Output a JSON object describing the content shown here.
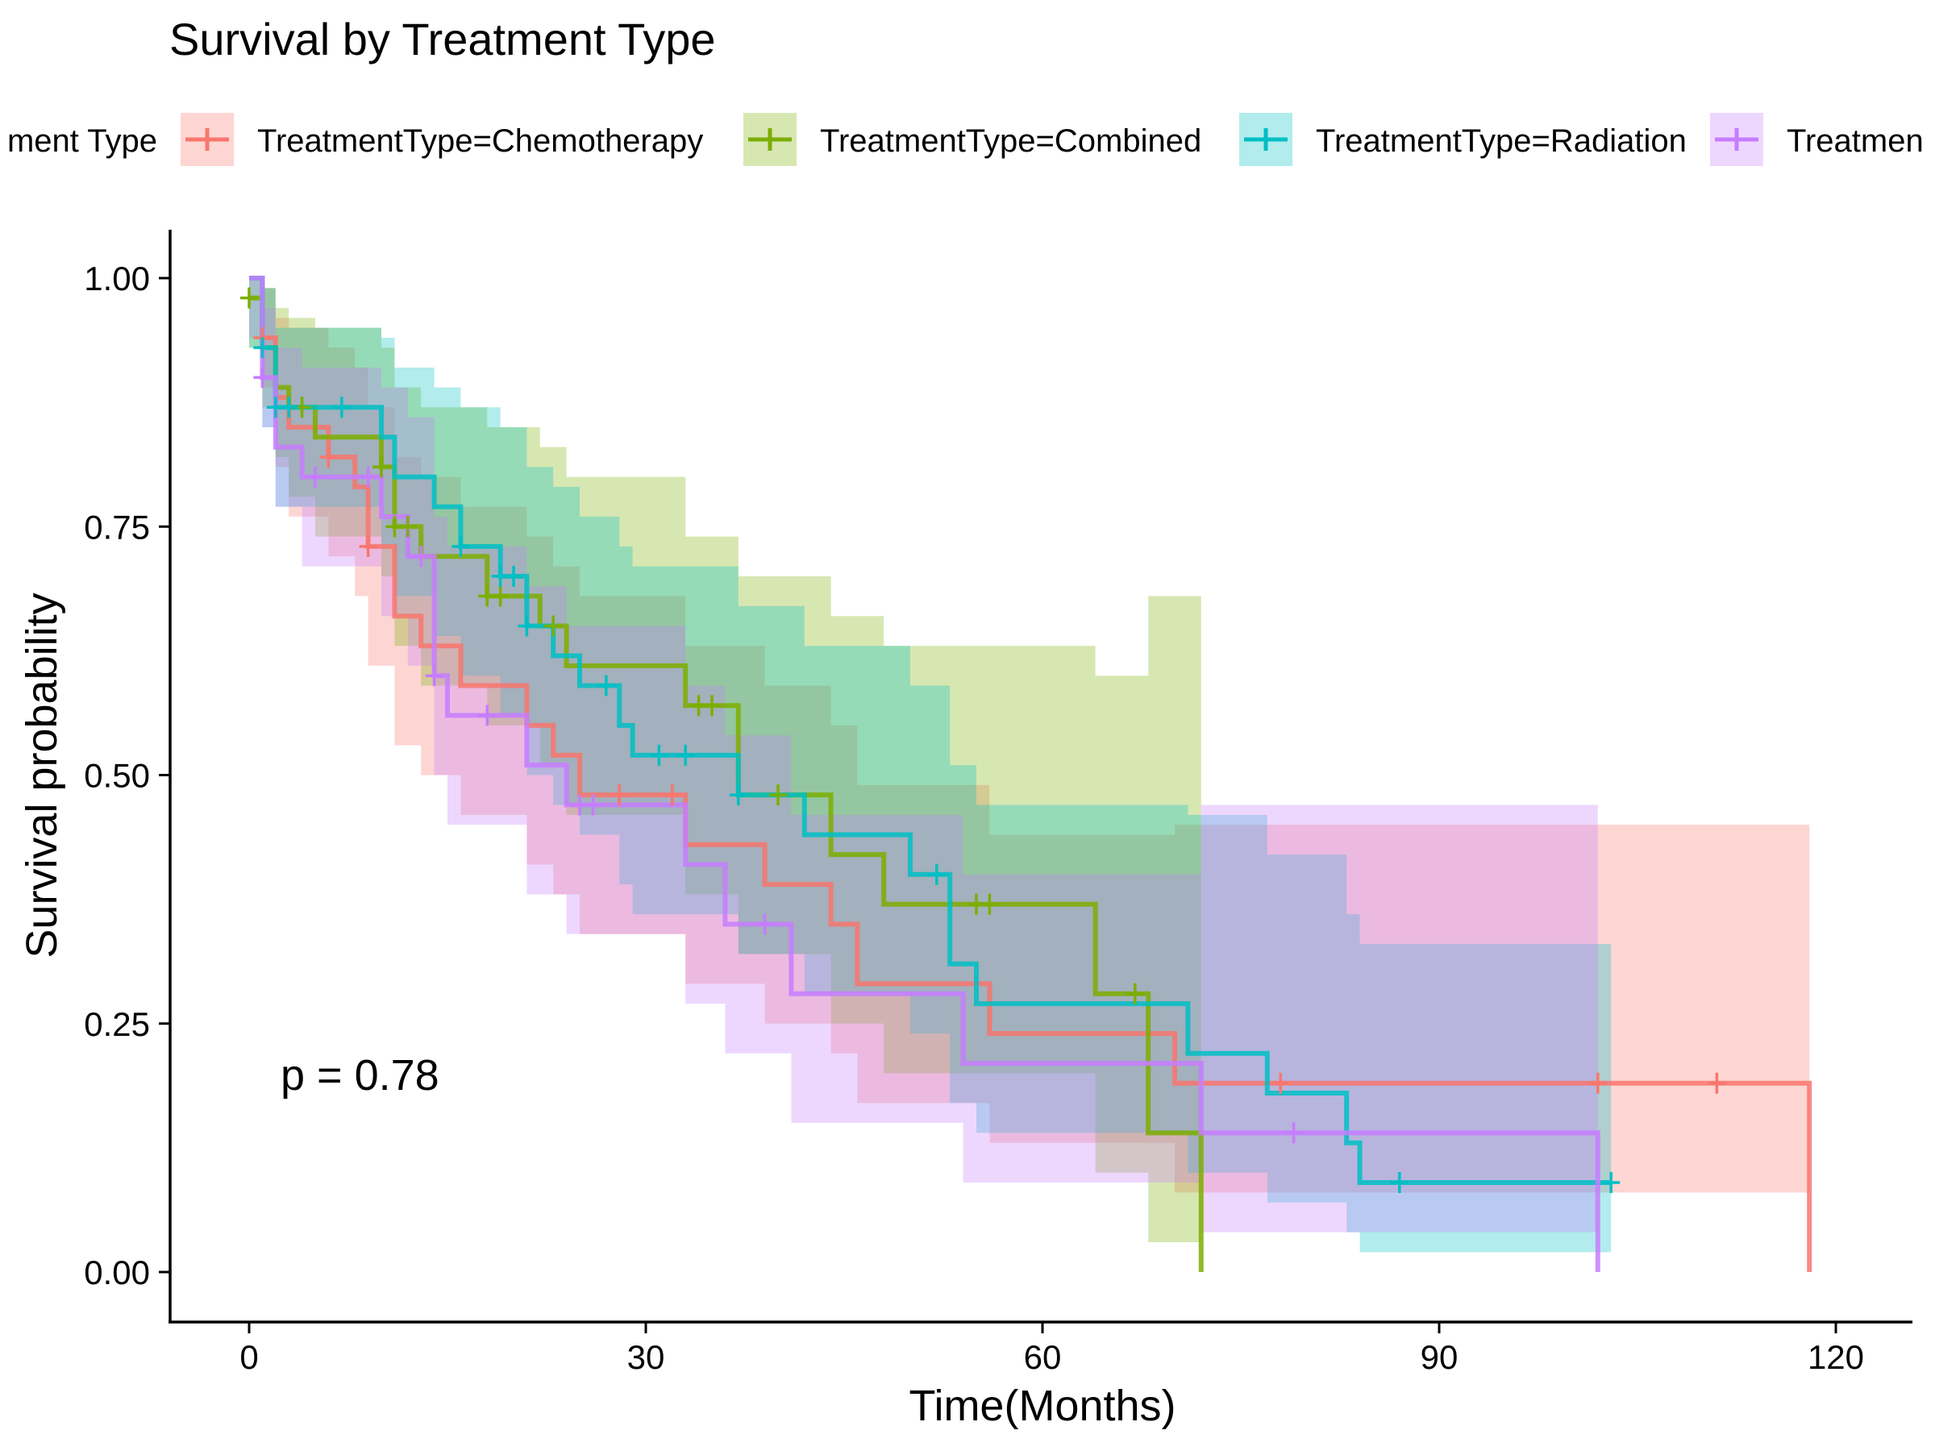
{
  "chart_data": {
    "type": "line",
    "subtype": "kaplan-meier",
    "title": "Survival by Treatment Type",
    "xlabel": "Time(Months)",
    "ylabel": "Survival probability",
    "xlim": [
      -6,
      126
    ],
    "ylim": [
      -0.05,
      1.05
    ],
    "x_ticks": [
      0,
      30,
      60,
      90,
      120
    ],
    "x_tick_labels": [
      "0",
      "30",
      "60",
      "90",
      "120"
    ],
    "y_ticks": [
      0,
      0.25,
      0.5,
      0.75,
      1.0
    ],
    "y_tick_labels": [
      "0.00",
      "0.25",
      "0.50",
      "0.75",
      "1.00"
    ],
    "grid": false,
    "legend": {
      "position": "top",
      "title": "Treatment Type",
      "title_visible_text": "ment Type",
      "entries": [
        "TreatmentType=Chemotherapy",
        "TreatmentType=Combined",
        "TreatmentType=Radiation",
        "TreatmentType=Surgery"
      ],
      "entries_visible_text": [
        "TreatmentType=Chemotherapy",
        "TreatmentType=Combined",
        "TreatmentType=Radiation",
        "Treatmen"
      ]
    },
    "annotation": "p = 0.78",
    "series": [
      {
        "name": "TreatmentType=Chemotherapy",
        "color": "#F8766D",
        "steps": [
          [
            0,
            1.0
          ],
          [
            1,
            0.94
          ],
          [
            2,
            0.88
          ],
          [
            3,
            0.85
          ],
          [
            6,
            0.82
          ],
          [
            8,
            0.79
          ],
          [
            9,
            0.73
          ],
          [
            11,
            0.66
          ],
          [
            13,
            0.63
          ],
          [
            16,
            0.59
          ],
          [
            21,
            0.55
          ],
          [
            23,
            0.52
          ],
          [
            25,
            0.48
          ],
          [
            33,
            0.43
          ],
          [
            39,
            0.39
          ],
          [
            44,
            0.35
          ],
          [
            46,
            0.29
          ],
          [
            56,
            0.24
          ],
          [
            70,
            0.19
          ],
          [
            118,
            0.0
          ]
        ],
        "upper": [
          [
            0,
            1.0
          ],
          [
            1,
            0.99
          ],
          [
            2,
            0.96
          ],
          [
            3,
            0.95
          ],
          [
            6,
            0.93
          ],
          [
            8,
            0.91
          ],
          [
            9,
            0.87
          ],
          [
            11,
            0.82
          ],
          [
            13,
            0.8
          ],
          [
            16,
            0.77
          ],
          [
            21,
            0.74
          ],
          [
            23,
            0.71
          ],
          [
            25,
            0.68
          ],
          [
            33,
            0.63
          ],
          [
            39,
            0.59
          ],
          [
            44,
            0.55
          ],
          [
            46,
            0.49
          ],
          [
            56,
            0.44
          ],
          [
            70,
            0.45
          ],
          [
            118,
            0.45
          ]
        ],
        "lower": [
          [
            0,
            1.0
          ],
          [
            1,
            0.89
          ],
          [
            2,
            0.81
          ],
          [
            3,
            0.76
          ],
          [
            6,
            0.72
          ],
          [
            8,
            0.68
          ],
          [
            9,
            0.61
          ],
          [
            11,
            0.53
          ],
          [
            13,
            0.5
          ],
          [
            16,
            0.46
          ],
          [
            21,
            0.41
          ],
          [
            23,
            0.38
          ],
          [
            25,
            0.34
          ],
          [
            33,
            0.29
          ],
          [
            39,
            0.25
          ],
          [
            44,
            0.22
          ],
          [
            46,
            0.17
          ],
          [
            56,
            0.13
          ],
          [
            70,
            0.08
          ],
          [
            118,
            0.08
          ]
        ],
        "censor_x": [
          1,
          6,
          9,
          28,
          32,
          78,
          102,
          111
        ],
        "end_drop_to": 0
      },
      {
        "name": "TreatmentType=Combined",
        "color": "#7CAE00",
        "steps": [
          [
            0,
            0.98
          ],
          [
            1,
            0.93
          ],
          [
            2,
            0.89
          ],
          [
            3,
            0.87
          ],
          [
            5,
            0.84
          ],
          [
            10,
            0.81
          ],
          [
            11,
            0.75
          ],
          [
            13,
            0.72
          ],
          [
            18,
            0.68
          ],
          [
            22,
            0.65
          ],
          [
            24,
            0.61
          ],
          [
            33,
            0.57
          ],
          [
            37,
            0.48
          ],
          [
            44,
            0.42
          ],
          [
            48,
            0.37
          ],
          [
            64,
            0.28
          ],
          [
            68,
            0.14
          ],
          [
            72,
            0.0
          ]
        ],
        "upper": [
          [
            0,
            1.0
          ],
          [
            1,
            0.99
          ],
          [
            2,
            0.97
          ],
          [
            3,
            0.96
          ],
          [
            5,
            0.95
          ],
          [
            10,
            0.93
          ],
          [
            11,
            0.89
          ],
          [
            13,
            0.87
          ],
          [
            18,
            0.85
          ],
          [
            22,
            0.83
          ],
          [
            24,
            0.8
          ],
          [
            33,
            0.74
          ],
          [
            37,
            0.7
          ],
          [
            44,
            0.66
          ],
          [
            48,
            0.63
          ],
          [
            64,
            0.6
          ],
          [
            68,
            0.68
          ],
          [
            72,
            0.68
          ]
        ],
        "lower": [
          [
            0,
            0.93
          ],
          [
            1,
            0.87
          ],
          [
            2,
            0.82
          ],
          [
            3,
            0.78
          ],
          [
            5,
            0.74
          ],
          [
            10,
            0.7
          ],
          [
            11,
            0.63
          ],
          [
            13,
            0.59
          ],
          [
            18,
            0.55
          ],
          [
            22,
            0.51
          ],
          [
            24,
            0.46
          ],
          [
            33,
            0.38
          ],
          [
            37,
            0.32
          ],
          [
            44,
            0.25
          ],
          [
            48,
            0.2
          ],
          [
            64,
            0.1
          ],
          [
            68,
            0.03
          ],
          [
            72,
            0.03
          ]
        ],
        "censor_x": [
          0,
          4,
          10,
          11,
          12,
          18,
          19,
          23,
          34,
          35,
          40,
          55,
          56,
          67
        ],
        "end_drop_to": 0
      },
      {
        "name": "TreatmentType=Radiation",
        "color": "#00BFC4",
        "steps": [
          [
            0,
            1.0
          ],
          [
            1,
            0.93
          ],
          [
            2,
            0.87
          ],
          [
            10,
            0.84
          ],
          [
            11,
            0.8
          ],
          [
            14,
            0.77
          ],
          [
            16,
            0.73
          ],
          [
            19,
            0.7
          ],
          [
            21,
            0.65
          ],
          [
            23,
            0.62
          ],
          [
            25,
            0.59
          ],
          [
            28,
            0.55
          ],
          [
            29,
            0.52
          ],
          [
            37,
            0.48
          ],
          [
            42,
            0.44
          ],
          [
            50,
            0.4
          ],
          [
            53,
            0.31
          ],
          [
            55,
            0.27
          ],
          [
            71,
            0.22
          ],
          [
            77,
            0.18
          ],
          [
            83,
            0.13
          ],
          [
            84,
            0.09
          ],
          [
            103,
            0.09
          ]
        ],
        "upper": [
          [
            0,
            1.0
          ],
          [
            1,
            0.99
          ],
          [
            2,
            0.95
          ],
          [
            10,
            0.94
          ],
          [
            11,
            0.91
          ],
          [
            14,
            0.89
          ],
          [
            16,
            0.87
          ],
          [
            19,
            0.85
          ],
          [
            21,
            0.81
          ],
          [
            23,
            0.79
          ],
          [
            25,
            0.76
          ],
          [
            28,
            0.73
          ],
          [
            29,
            0.71
          ],
          [
            37,
            0.67
          ],
          [
            42,
            0.63
          ],
          [
            50,
            0.59
          ],
          [
            53,
            0.51
          ],
          [
            55,
            0.47
          ],
          [
            71,
            0.46
          ],
          [
            77,
            0.42
          ],
          [
            83,
            0.36
          ],
          [
            84,
            0.33
          ],
          [
            103,
            0.33
          ]
        ],
        "lower": [
          [
            0,
            0.93
          ],
          [
            1,
            0.85
          ],
          [
            2,
            0.77
          ],
          [
            10,
            0.73
          ],
          [
            11,
            0.68
          ],
          [
            14,
            0.64
          ],
          [
            16,
            0.6
          ],
          [
            19,
            0.56
          ],
          [
            21,
            0.5
          ],
          [
            23,
            0.47
          ],
          [
            25,
            0.44
          ],
          [
            28,
            0.39
          ],
          [
            29,
            0.36
          ],
          [
            37,
            0.32
          ],
          [
            42,
            0.28
          ],
          [
            50,
            0.24
          ],
          [
            53,
            0.17
          ],
          [
            55,
            0.14
          ],
          [
            71,
            0.1
          ],
          [
            77,
            0.07
          ],
          [
            83,
            0.04
          ],
          [
            84,
            0.02
          ],
          [
            103,
            0.02
          ]
        ],
        "censor_x": [
          1,
          2,
          3,
          7,
          16,
          19,
          20,
          21,
          27,
          31,
          33,
          37,
          52,
          87,
          103
        ],
        "end_drop_to": null
      },
      {
        "name": "TreatmentType=Surgery",
        "color": "#C77CFF",
        "steps": [
          [
            0,
            1.0
          ],
          [
            1,
            0.9
          ],
          [
            2,
            0.83
          ],
          [
            4,
            0.8
          ],
          [
            10,
            0.76
          ],
          [
            12,
            0.72
          ],
          [
            14,
            0.6
          ],
          [
            15,
            0.56
          ],
          [
            21,
            0.51
          ],
          [
            24,
            0.47
          ],
          [
            33,
            0.41
          ],
          [
            36,
            0.35
          ],
          [
            41,
            0.28
          ],
          [
            54,
            0.21
          ],
          [
            72,
            0.14
          ],
          [
            102,
            0.0
          ]
        ],
        "upper": [
          [
            0,
            1.0
          ],
          [
            1,
            0.97
          ],
          [
            2,
            0.93
          ],
          [
            4,
            0.91
          ],
          [
            10,
            0.89
          ],
          [
            12,
            0.86
          ],
          [
            14,
            0.76
          ],
          [
            15,
            0.73
          ],
          [
            21,
            0.69
          ],
          [
            24,
            0.65
          ],
          [
            33,
            0.59
          ],
          [
            36,
            0.54
          ],
          [
            41,
            0.46
          ],
          [
            54,
            0.4
          ],
          [
            72,
            0.47
          ],
          [
            102,
            0.47
          ]
        ],
        "lower": [
          [
            0,
            0.94
          ],
          [
            1,
            0.85
          ],
          [
            2,
            0.77
          ],
          [
            4,
            0.71
          ],
          [
            10,
            0.66
          ],
          [
            12,
            0.61
          ],
          [
            14,
            0.5
          ],
          [
            15,
            0.45
          ],
          [
            21,
            0.38
          ],
          [
            24,
            0.34
          ],
          [
            33,
            0.27
          ],
          [
            36,
            0.22
          ],
          [
            41,
            0.15
          ],
          [
            54,
            0.09
          ],
          [
            72,
            0.04
          ],
          [
            102,
            0.04
          ]
        ],
        "censor_x": [
          1,
          5,
          9,
          13,
          14,
          18,
          25,
          26,
          39,
          79
        ],
        "end_drop_to": 0
      }
    ]
  }
}
